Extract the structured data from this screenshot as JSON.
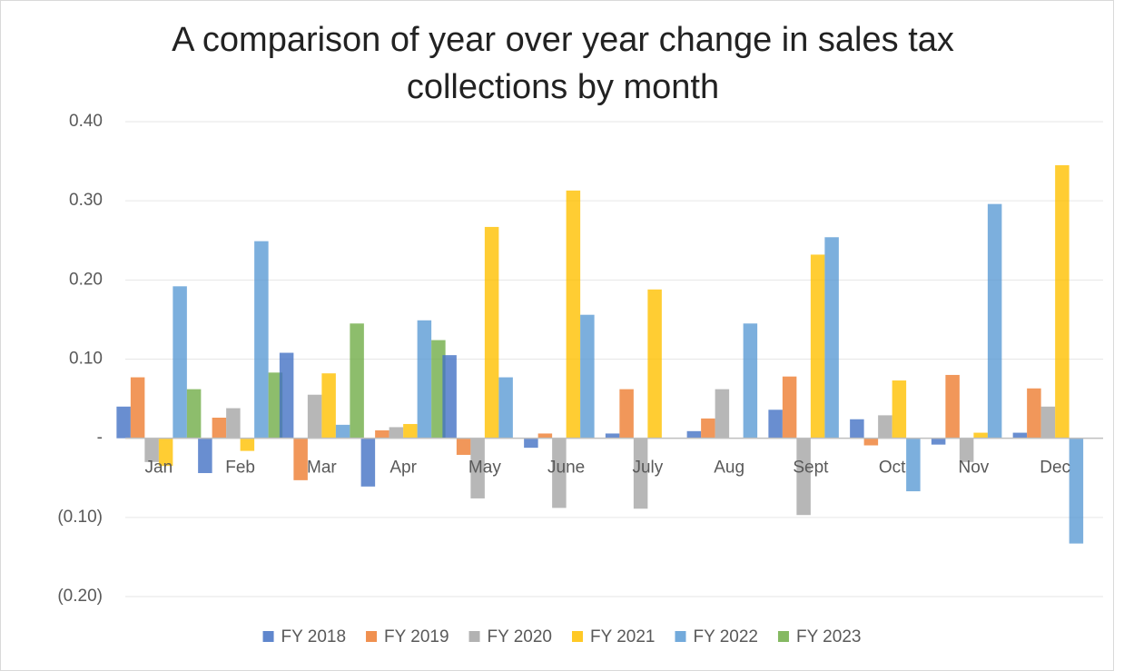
{
  "chart_data": {
    "type": "bar",
    "title": "A comparison of year over year change in sales tax collections by month",
    "categories": [
      "Jan",
      "Feb",
      "Mar",
      "Apr",
      "May",
      "June",
      "July",
      "Aug",
      "Sept",
      "Oct",
      "Nov",
      "Dec"
    ],
    "series": [
      {
        "name": "FY 2018",
        "color": "#4472c4",
        "values": [
          0.04,
          -0.044,
          0.108,
          -0.061,
          0.105,
          -0.012,
          0.006,
          0.009,
          0.036,
          0.024,
          -0.008,
          0.007
        ]
      },
      {
        "name": "FY 2019",
        "color": "#ed7d31",
        "values": [
          0.077,
          0.026,
          -0.053,
          0.01,
          -0.021,
          0.006,
          0.062,
          0.025,
          0.078,
          -0.009,
          0.08,
          0.063
        ]
      },
      {
        "name": "FY 2020",
        "color": "#a5a5a5",
        "values": [
          -0.03,
          0.038,
          0.055,
          0.014,
          -0.076,
          -0.088,
          -0.089,
          0.062,
          -0.097,
          0.029,
          -0.03,
          0.04
        ]
      },
      {
        "name": "FY 2021",
        "color": "#ffc000",
        "values": [
          -0.035,
          -0.016,
          0.082,
          0.018,
          0.267,
          0.313,
          0.188,
          null,
          0.232,
          0.073,
          0.007,
          0.345
        ]
      },
      {
        "name": "FY 2022",
        "color": "#5b9bd5",
        "values": [
          0.192,
          0.249,
          0.017,
          0.149,
          0.077,
          0.156,
          null,
          0.145,
          0.254,
          -0.067,
          0.296,
          -0.133
        ]
      },
      {
        "name": "FY 2023",
        "color": "#70ad47",
        "values": [
          0.062,
          0.083,
          0.145,
          0.124,
          null,
          null,
          null,
          null,
          null,
          null,
          null,
          null
        ]
      }
    ],
    "ylim": [
      -0.2,
      0.4
    ],
    "yticks": [
      {
        "value": -0.2,
        "label": "(0.20)"
      },
      {
        "value": -0.1,
        "label": "(0.10)"
      },
      {
        "value": 0,
        "label": "-"
      },
      {
        "value": 0.1,
        "label": "0.10"
      },
      {
        "value": 0.2,
        "label": "0.20"
      },
      {
        "value": 0.3,
        "label": "0.30"
      },
      {
        "value": 0.4,
        "label": "0.40"
      }
    ],
    "grid": true,
    "legend": "bottom"
  }
}
